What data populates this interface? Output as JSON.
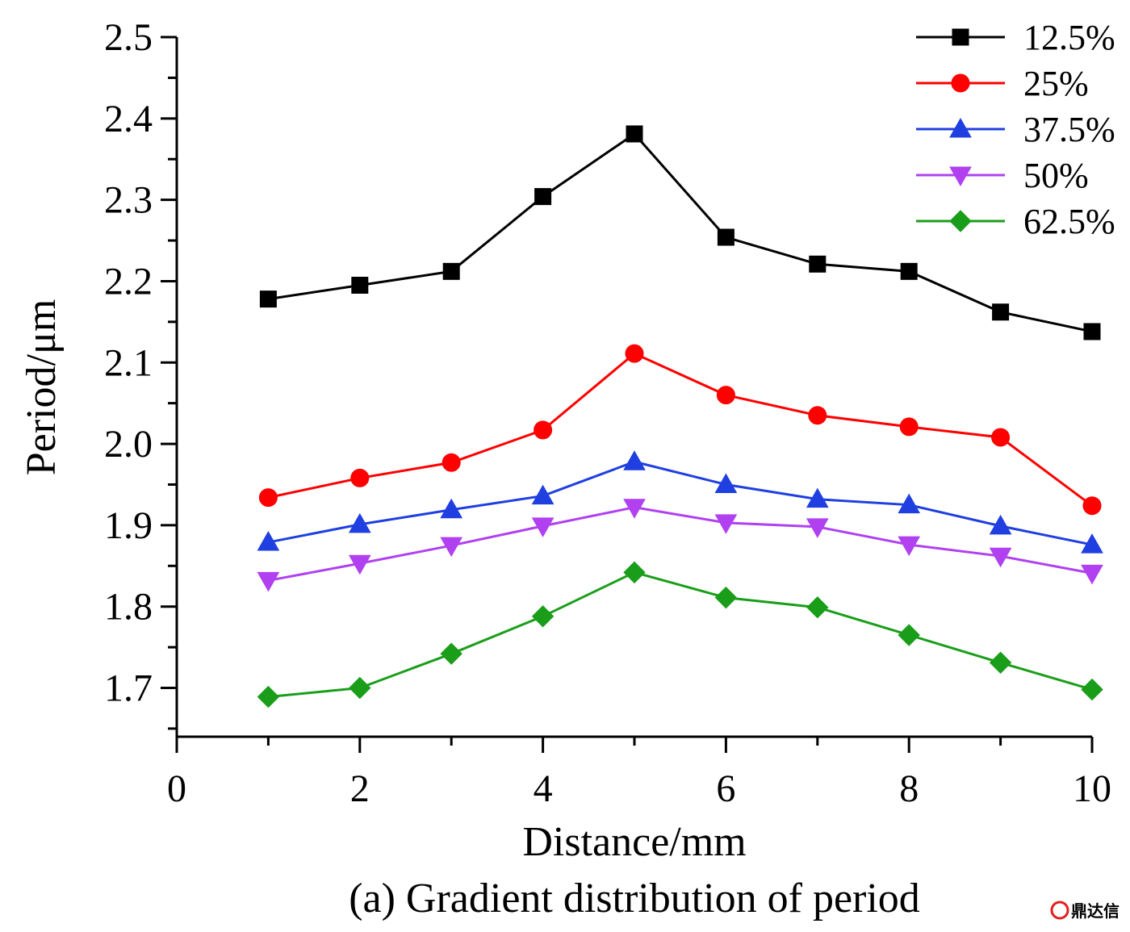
{
  "chart_data": {
    "type": "line",
    "caption": "(a) Gradient distribution of period",
    "xlabel": "Distance/mm",
    "ylabel": "Period/μm",
    "xlim": [
      0,
      10
    ],
    "ylim": [
      1.64,
      2.5
    ],
    "x_ticks": [
      0,
      2,
      4,
      6,
      8,
      10
    ],
    "x_tick_labels": [
      "0",
      "2",
      "4",
      "6",
      "8",
      "10"
    ],
    "y_ticks": [
      1.7,
      1.8,
      1.9,
      2.0,
      2.1,
      2.2,
      2.3,
      2.4,
      2.5
    ],
    "y_tick_labels": [
      "1.7",
      "1.8",
      "1.9",
      "2.0",
      "2.1",
      "2.2",
      "2.3",
      "2.4",
      "2.5"
    ],
    "grid": false,
    "legend_position": "top-right",
    "x": [
      1,
      2,
      3,
      4,
      5,
      6,
      7,
      8,
      9,
      10
    ],
    "series": [
      {
        "name": "12.5%",
        "color": "#000000",
        "marker": "square",
        "values": [
          2.178,
          2.195,
          2.212,
          2.304,
          2.381,
          2.254,
          2.221,
          2.212,
          2.162,
          2.138
        ]
      },
      {
        "name": "25%",
        "color": "#ff0000",
        "marker": "circle",
        "values": [
          1.934,
          1.958,
          1.977,
          2.017,
          2.111,
          2.06,
          2.035,
          2.021,
          2.008,
          1.924
        ]
      },
      {
        "name": "37.5%",
        "color": "#1f3fe0",
        "marker": "triangle-up",
        "values": [
          1.879,
          1.901,
          1.919,
          1.936,
          1.978,
          1.95,
          1.932,
          1.925,
          1.899,
          1.876
        ]
      },
      {
        "name": "50%",
        "color": "#b040f0",
        "marker": "triangle-down",
        "values": [
          1.832,
          1.853,
          1.875,
          1.899,
          1.922,
          1.903,
          1.898,
          1.876,
          1.862,
          1.841
        ]
      },
      {
        "name": "62.5%",
        "color": "#1a9e1a",
        "marker": "diamond",
        "values": [
          1.689,
          1.7,
          1.742,
          1.788,
          1.842,
          1.811,
          1.799,
          1.765,
          1.731,
          1.698
        ]
      }
    ]
  },
  "watermark": {
    "text": "鼎达信",
    "color": "#e02020"
  }
}
